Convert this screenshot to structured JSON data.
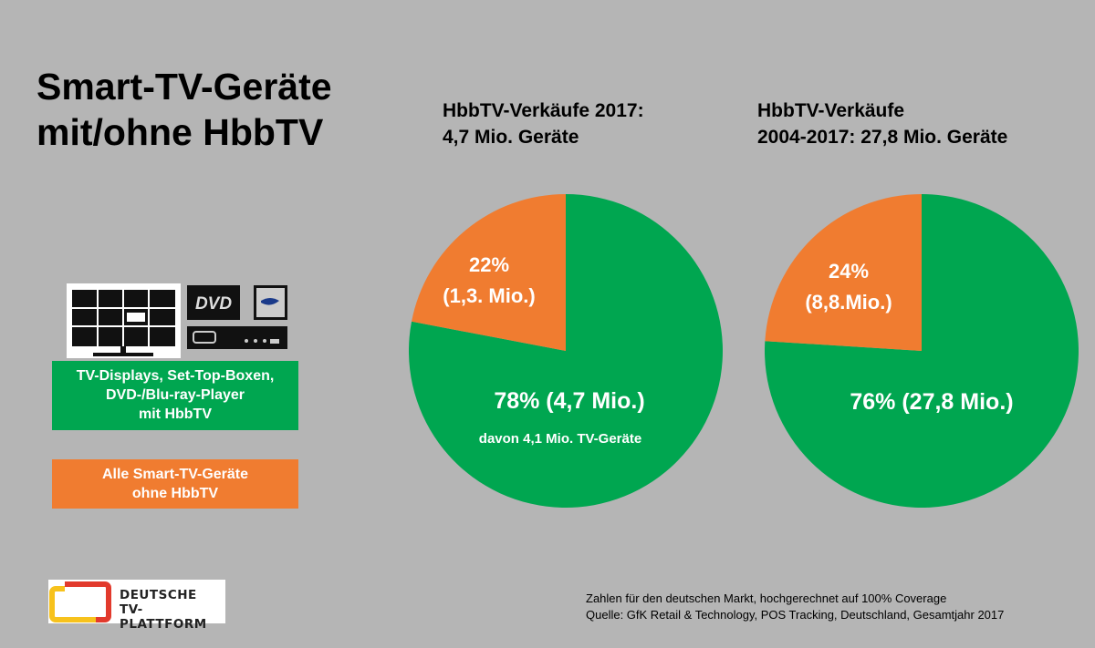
{
  "title_line1": "Smart-TV-Geräte",
  "title_line2": "mit/ohne HbbTV",
  "legend": {
    "green_line1": "TV-Displays, Set-Top-Boxen,",
    "green_line2": "DVD-/Blu-ray-Player",
    "green_line3": "mit HbbTV",
    "orange_line1": "Alle Smart-TV-Geräte",
    "orange_line2": "ohne HbbTV",
    "icons": [
      "tv-display-icon",
      "dvd-icon",
      "blu-ray-icon",
      "set-top-box-icon"
    ]
  },
  "colors": {
    "with_hbbtv": "#00a650",
    "without_hbbtv": "#f07c30",
    "background": "#b5b5b5"
  },
  "chart_data": [
    {
      "type": "pie",
      "title_line1": "HbbTV-Verkäufe 2017:",
      "title_line2": "4,7 Mio. Geräte",
      "slices": [
        {
          "label": "78% (4,7 Mio.)",
          "value": 78,
          "sublabel": "davon 4,1 Mio. TV-Geräte",
          "color": "#00a650"
        },
        {
          "label_line1": "22%",
          "label_line2": "(1,3. Mio.)",
          "value": 22,
          "color": "#f07c30"
        }
      ]
    },
    {
      "type": "pie",
      "title_line1": "HbbTV-Verkäufe",
      "title_line2": "2004-2017: 27,8 Mio. Geräte",
      "slices": [
        {
          "label": "76% (27,8 Mio.)",
          "value": 76,
          "color": "#00a650"
        },
        {
          "label_line1": "24%",
          "label_line2": "(8,8.Mio.)",
          "value": 24,
          "color": "#f07c30"
        }
      ]
    }
  ],
  "footer": {
    "line1": "Zahlen für den deutschen Markt, hochgerechnet auf 100% Coverage",
    "line2": "Quelle: GfK Retail & Technology, POS Tracking, Deutschland, Gesamtjahr 2017"
  },
  "logo": {
    "line1": "DEUTSCHE",
    "line2": "TV-PLATTFORM"
  }
}
